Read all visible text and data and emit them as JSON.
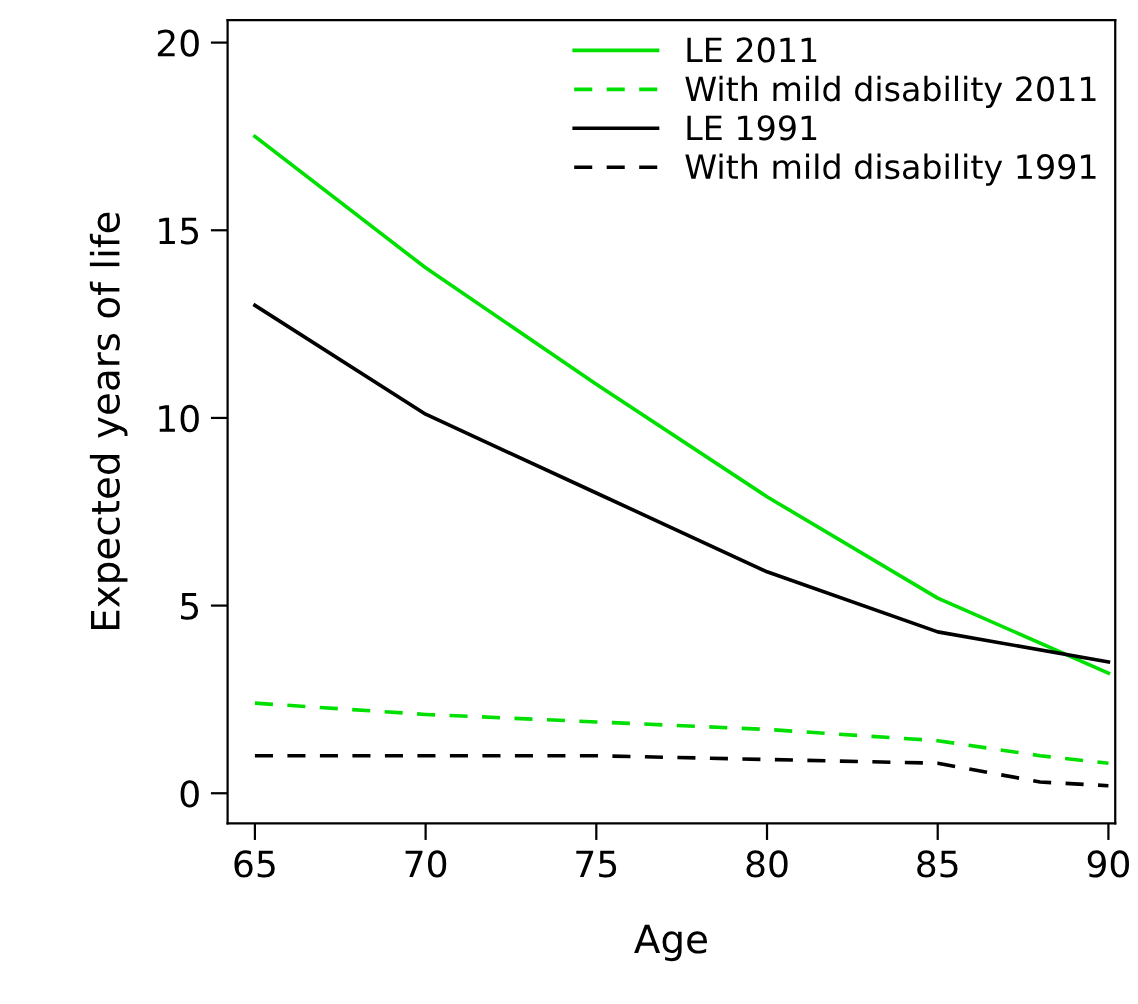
{
  "chart_data": {
    "type": "line",
    "xlabel": "Age",
    "ylabel": "Expected years of life",
    "xlim": [
      64.2,
      90.2
    ],
    "xticks": [
      65,
      70,
      75,
      80,
      85,
      90
    ],
    "ylim": [
      -0.8,
      20.6
    ],
    "yticks": [
      0,
      5,
      10,
      15,
      20
    ],
    "grid": false,
    "legend": "top right",
    "marker": "none",
    "series": [
      {
        "name": "LE 2011",
        "color": "#00e000",
        "line_style": "solid",
        "x": [
          65,
          70,
          75,
          80,
          85,
          90
        ],
        "values": [
          17.5,
          14.0,
          10.9,
          7.9,
          5.2,
          3.2
        ]
      },
      {
        "name": "With mild disability 2011",
        "color": "#00e000",
        "line_style": "dashed",
        "x": [
          65,
          70,
          75,
          80,
          85,
          88,
          90
        ],
        "values": [
          2.4,
          2.1,
          1.9,
          1.7,
          1.4,
          1.0,
          0.8
        ]
      },
      {
        "name": "LE 1991",
        "color": "#000000",
        "line_style": "solid",
        "x": [
          65,
          70,
          75,
          80,
          85,
          90
        ],
        "values": [
          13.0,
          10.1,
          8.0,
          5.9,
          4.3,
          3.5
        ]
      },
      {
        "name": "With mild disability 1991",
        "color": "#000000",
        "line_style": "dashed",
        "x": [
          65,
          70,
          75,
          80,
          85,
          88,
          90
        ],
        "values": [
          1.0,
          1.0,
          1.0,
          0.9,
          0.8,
          0.3,
          0.2
        ]
      }
    ]
  }
}
